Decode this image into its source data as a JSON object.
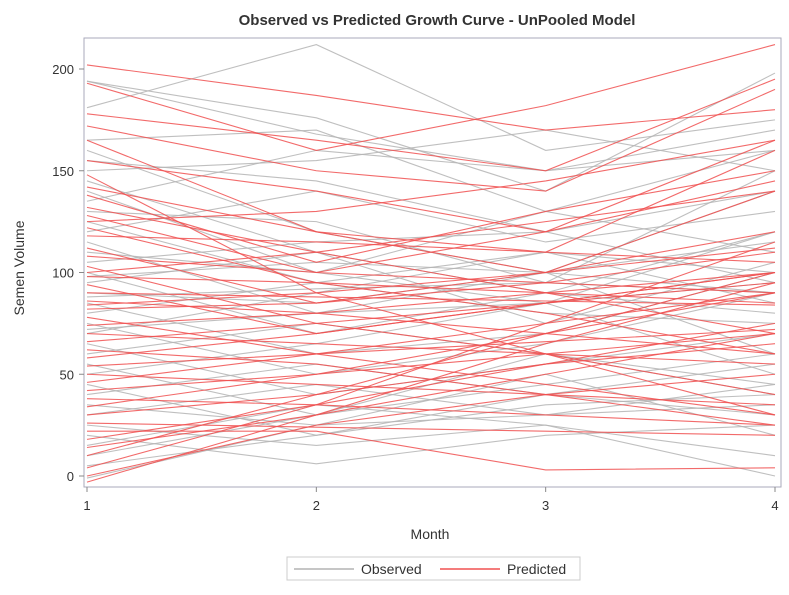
{
  "chart_data": {
    "type": "line",
    "title": "Observed vs Predicted Growth Curve - UnPooled Model",
    "xlabel": "Month",
    "ylabel": "Semen Volume",
    "x": [
      1,
      2,
      3,
      4
    ],
    "xticks": [
      "1",
      "2",
      "3",
      "4"
    ],
    "yticks": [
      "0",
      "50",
      "100",
      "150",
      "200"
    ],
    "xlim": [
      1,
      4
    ],
    "ylim": [
      -5,
      215
    ],
    "grid": false,
    "legend_placement": "bottom",
    "colors": {
      "Observed": "#b4b4b4",
      "Predicted": "#f05050"
    },
    "series": [
      {
        "name": "Observed",
        "lines": [
          [
            181,
            212,
            160,
            175
          ],
          [
            194,
            176,
            140,
            198
          ],
          [
            194,
            168,
            150,
            170
          ],
          [
            165,
            170,
            130,
            160
          ],
          [
            160,
            120,
            100,
            140
          ],
          [
            150,
            155,
            170,
            150
          ],
          [
            145,
            110,
            90,
            120
          ],
          [
            140,
            100,
            130,
            110
          ],
          [
            130,
            125,
            95,
            150
          ],
          [
            125,
            95,
            110,
            100
          ],
          [
            120,
            140,
            115,
            130
          ],
          [
            115,
            80,
            100,
            90
          ],
          [
            110,
            100,
            85,
            120
          ],
          [
            105,
            115,
            120,
            95
          ],
          [
            100,
            70,
            90,
            80
          ],
          [
            95,
            110,
            75,
            105
          ],
          [
            90,
            85,
            100,
            60
          ],
          [
            85,
            60,
            70,
            100
          ],
          [
            80,
            95,
            80,
            75
          ],
          [
            75,
            50,
            65,
            90
          ],
          [
            70,
            90,
            110,
            85
          ],
          [
            65,
            40,
            55,
            70
          ],
          [
            60,
            75,
            60,
            45
          ],
          [
            55,
            30,
            45,
            60
          ],
          [
            50,
            65,
            85,
            50
          ],
          [
            45,
            20,
            35,
            40
          ],
          [
            40,
            55,
            40,
            30
          ],
          [
            35,
            25,
            50,
            20
          ],
          [
            30,
            45,
            30,
            35
          ],
          [
            25,
            15,
            25,
            10
          ],
          [
            20,
            6,
            20,
            25
          ],
          [
            15,
            35,
            25,
            0
          ],
          [
            10,
            30,
            60,
            40
          ],
          [
            5,
            20,
            40,
            55
          ],
          [
            -1,
            25,
            30,
            45
          ],
          [
            135,
            160,
            150,
            160
          ],
          [
            155,
            145,
            120,
            140
          ],
          [
            98,
            105,
            100,
            115
          ],
          [
            88,
            92,
            95,
            90
          ],
          [
            72,
            80,
            85,
            95
          ]
        ]
      },
      {
        "name": "Predicted",
        "lines": [
          [
            202,
            187,
            170,
            180
          ],
          [
            193,
            160,
            182,
            212
          ],
          [
            178,
            165,
            150,
            195
          ],
          [
            172,
            150,
            140,
            190
          ],
          [
            165,
            120,
            110,
            160
          ],
          [
            155,
            140,
            120,
            165
          ],
          [
            148,
            90,
            60,
            30
          ],
          [
            142,
            120,
            100,
            140
          ],
          [
            138,
            105,
            130,
            150
          ],
          [
            132,
            110,
            90,
            70
          ],
          [
            128,
            100,
            120,
            145
          ],
          [
            122,
            95,
            80,
            60
          ],
          [
            118,
            115,
            110,
            105
          ],
          [
            112,
            85,
            100,
            120
          ],
          [
            108,
            100,
            95,
            90
          ],
          [
            103,
            75,
            60,
            40
          ],
          [
            98,
            95,
            90,
            85
          ],
          [
            94,
            70,
            85,
            100
          ],
          [
            90,
            88,
            86,
            84
          ],
          [
            86,
            80,
            70,
            60
          ],
          [
            82,
            85,
            95,
            110
          ],
          [
            78,
            60,
            45,
            30
          ],
          [
            74,
            80,
            90,
            100
          ],
          [
            70,
            65,
            60,
            55
          ],
          [
            66,
            75,
            85,
            95
          ],
          [
            62,
            55,
            40,
            25
          ],
          [
            58,
            70,
            85,
            100
          ],
          [
            54,
            60,
            66,
            72
          ],
          [
            50,
            45,
            40,
            35
          ],
          [
            46,
            60,
            75,
            90
          ],
          [
            42,
            50,
            60,
            70
          ],
          [
            38,
            35,
            30,
            25
          ],
          [
            34,
            50,
            70,
            90
          ],
          [
            30,
            40,
            55,
            65
          ],
          [
            26,
            24,
            22,
            20
          ],
          [
            22,
            22,
            3,
            4
          ],
          [
            18,
            35,
            55,
            75
          ],
          [
            14,
            30,
            50,
            70
          ],
          [
            10,
            40,
            70,
            100
          ],
          [
            4,
            35,
            75,
            115
          ],
          [
            -3,
            30,
            65,
            95
          ],
          [
            0,
            25,
            40,
            50
          ],
          [
            125,
            130,
            145,
            165
          ],
          [
            100,
            110,
            125,
            140
          ],
          [
            84,
            90,
            100,
            112
          ]
        ]
      }
    ]
  }
}
